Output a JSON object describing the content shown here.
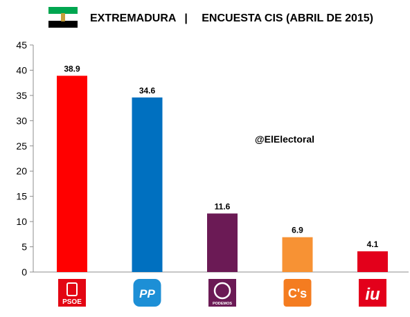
{
  "header": {
    "title": "EXTREMADURA",
    "separator": "|",
    "subtitle": "ENCUESTA CIS (ABRIL DE 2015)"
  },
  "watermark": "@ElElectoral",
  "colors": {
    "flag_top": "#00a650",
    "flag_middle": "#ffffff",
    "flag_bottom": "#000000"
  },
  "chart_data": {
    "type": "bar",
    "categories": [
      "PSOE",
      "PP",
      "PODEMOS",
      "C's",
      "IU"
    ],
    "values": [
      38.9,
      34.6,
      11.6,
      6.9,
      4.1
    ],
    "value_labels": [
      "38.9",
      "34.6",
      "11.6",
      "6.9",
      "4.1"
    ],
    "colors": [
      "#ff0000",
      "#0070c0",
      "#6b1a55",
      "#f79234",
      "#e3001b"
    ],
    "ylim": [
      0,
      45
    ],
    "yticks": [
      0,
      5,
      10,
      15,
      20,
      25,
      30,
      35,
      40,
      45
    ],
    "grid": false,
    "legend": "none",
    "logos": [
      {
        "icon": "psoe-logo",
        "text": "PSOE",
        "color": "#e30613"
      },
      {
        "icon": "pp-logo",
        "text": "PP",
        "color": "#1d8fd6"
      },
      {
        "icon": "podemos-logo",
        "text": "PODEMOS",
        "color": "#6b1a55"
      },
      {
        "icon": "ciudadanos-logo",
        "text": "C's",
        "color": "#f47c20"
      },
      {
        "icon": "iu-logo",
        "text": "iu",
        "color": "#e3001b"
      }
    ]
  }
}
